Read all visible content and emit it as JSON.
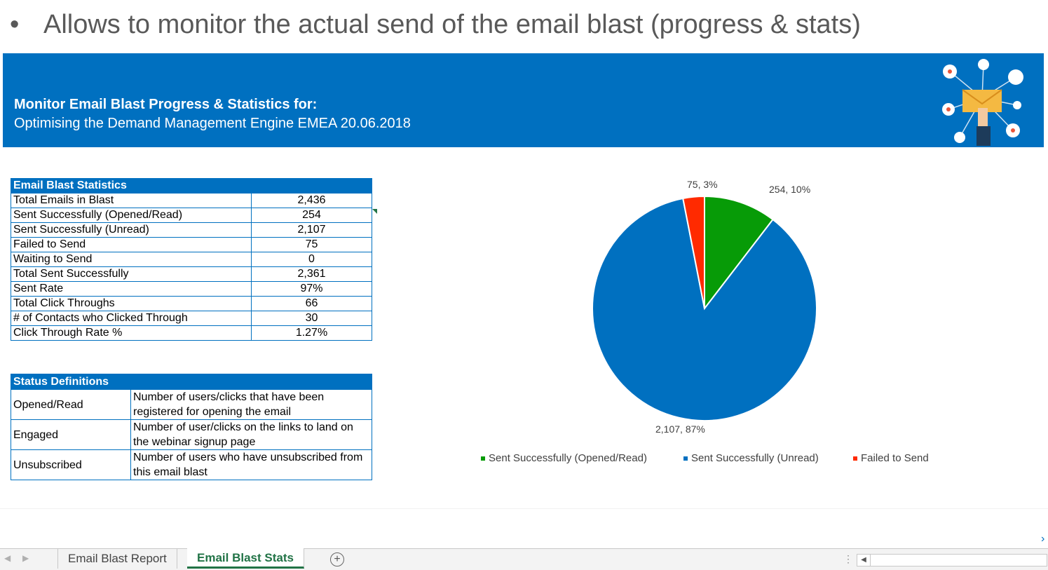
{
  "slide": {
    "bullet": "•",
    "text": "Allows to monitor the actual send of the email blast (progress & stats)"
  },
  "banner": {
    "title": "Monitor Email Blast Progress & Statistics for:",
    "subtitle": "Optimising the Demand Management Engine EMEA 20.06.2018",
    "logo_icon": "email-marketing-illustration"
  },
  "stats_table": {
    "header": "Email Blast Statistics",
    "rows": [
      {
        "label": "Total Emails in Blast",
        "value": "2,436"
      },
      {
        "label": "Sent Successfully (Opened/Read)",
        "value": "254"
      },
      {
        "label": "Sent Successfully (Unread)",
        "value": "2,107"
      },
      {
        "label": "Failed to Send",
        "value": "75"
      },
      {
        "label": "Waiting to Send",
        "value": "0"
      },
      {
        "label": "Total Sent Successfully",
        "value": "2,361"
      },
      {
        "label": "Sent Rate",
        "value": "97%"
      },
      {
        "label": "Total Click Throughs",
        "value": "66"
      },
      {
        "label": "# of Contacts who Clicked Through",
        "value": "30"
      },
      {
        "label": "Click Through Rate %",
        "value": "1.27%"
      }
    ]
  },
  "definitions_table": {
    "header": "Status Definitions",
    "rows": [
      {
        "term": "Opened/Read",
        "definition": "Number of users/clicks that have been registered for opening the email"
      },
      {
        "term": "Engaged",
        "definition": "Number of user/clicks on the links to land on the webinar signup page"
      },
      {
        "term": "Unsubscribed",
        "definition": "Number of users who have unsubscribed from this email blast"
      }
    ]
  },
  "chart_data": {
    "type": "pie",
    "categories": [
      "Sent Successfully (Opened/Read)",
      "Sent Successfully (Unread)",
      "Failed to Send"
    ],
    "values": [
      254,
      2107,
      75
    ],
    "data_labels": [
      "254, 10%",
      "2,107, 87%",
      "75, 3%"
    ],
    "colors": [
      "#079b07",
      "#0070c0",
      "#ff2a00"
    ],
    "legend_position": "bottom",
    "title": ""
  },
  "sheet_tabs": {
    "tabs": [
      "Email Blast Report",
      "Email Blast Stats"
    ],
    "active": "Email Blast Stats",
    "add_icon": "plus-circle-icon",
    "add_symbol": "+",
    "nav_prev": "◀",
    "nav_next": "▶",
    "scroll_left": "◀",
    "dots": "⋮"
  },
  "edge_chevron": "›"
}
